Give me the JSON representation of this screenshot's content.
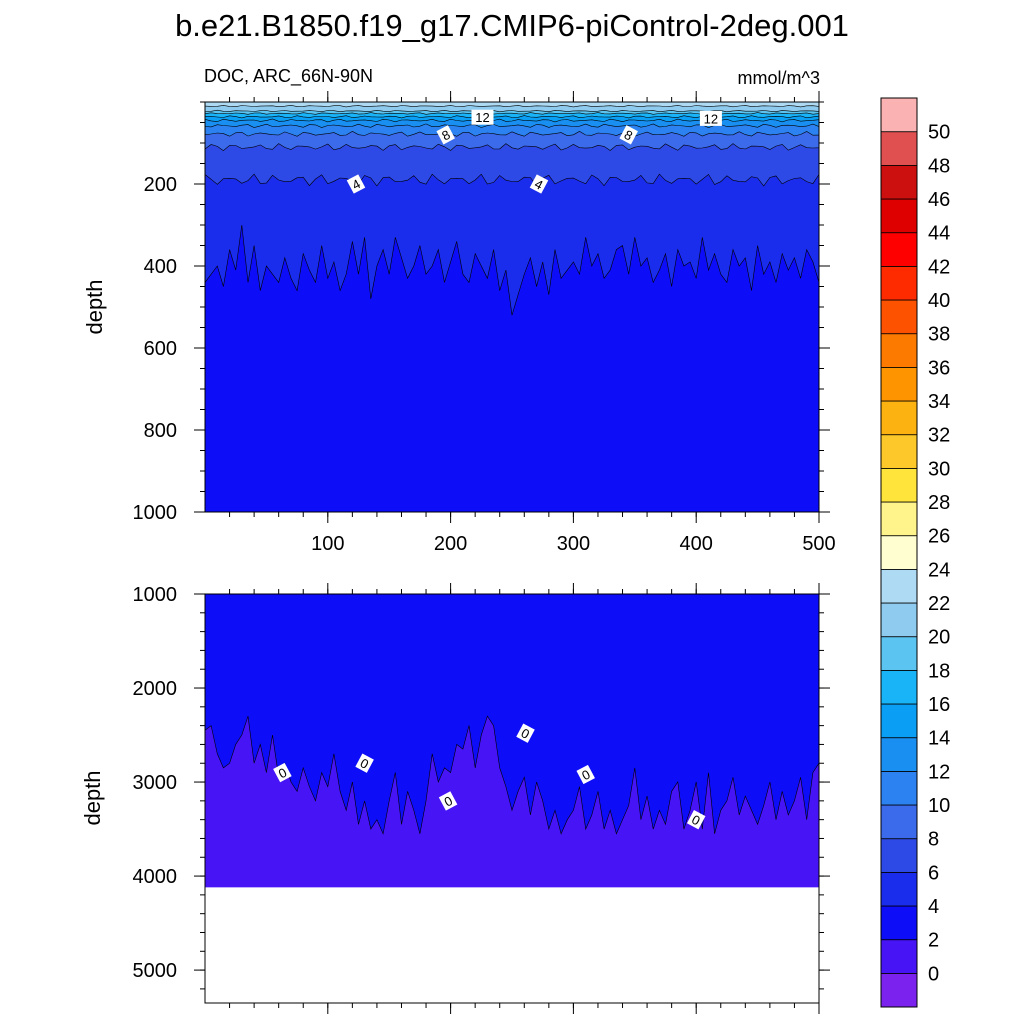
{
  "figure": {
    "title": "b.e21.B1850.f19_g17.CMIP6-piControl-2deg.001",
    "subtitle_left": "DOC, ARC_66N-90N",
    "subtitle_right": "mmol/m^3"
  },
  "colorbar": {
    "levels": [
      0,
      2,
      4,
      6,
      8,
      10,
      12,
      14,
      16,
      18,
      20,
      22,
      24,
      26,
      28,
      30,
      32,
      34,
      36,
      38,
      40,
      42,
      44,
      46,
      48,
      50
    ],
    "labels": [
      "0",
      "2",
      "4",
      "6",
      "8",
      "10",
      "12",
      "14",
      "16",
      "18",
      "20",
      "22",
      "24",
      "26",
      "28",
      "30",
      "32",
      "34",
      "36",
      "38",
      "40",
      "42",
      "44",
      "46",
      "48",
      "50"
    ],
    "colors": [
      "#7c22ee",
      "#4715f5",
      "#0d0df7",
      "#1a2cec",
      "#2e4ae6",
      "#3b6aea",
      "#2b82f0",
      "#1a8ff2",
      "#0a9ff5",
      "#19b3f8",
      "#5cc4f0",
      "#8ecbee",
      "#aedaf3",
      "#fefed0",
      "#fff48c",
      "#fee43b",
      "#fdc829",
      "#fcb312",
      "#fd9400",
      "#fd7a00",
      "#fd5200",
      "#fe2a00",
      "#fe0000",
      "#de0000",
      "#cc1010",
      "#e05050",
      "#fbb2b2"
    ]
  },
  "chart_data": [
    {
      "type": "heatmap",
      "subtype": "filled-contour",
      "panel": "upper",
      "ylabel": "depth",
      "xlabel": "",
      "xlim": [
        0,
        500
      ],
      "ylim": [
        1000,
        0
      ],
      "x_ticks": [
        100,
        200,
        300,
        400,
        500
      ],
      "x_tick_labels": [
        "100",
        "200",
        "300",
        "400",
        "500"
      ],
      "y_ticks": [
        200,
        400,
        600,
        800,
        1000
      ],
      "y_tick_labels": [
        "200",
        "400",
        "600",
        "800",
        "1000"
      ],
      "surface_bands": [
        {
          "level": 22,
          "bottom_depth": 10
        },
        {
          "level": 20,
          "bottom_depth": 22
        },
        {
          "level": 18,
          "bottom_depth": 28
        },
        {
          "level": 16,
          "bottom_depth": 36
        },
        {
          "level": 14,
          "bottom_depth": 45
        },
        {
          "level": 12,
          "bottom_depth": 58
        },
        {
          "level": 10,
          "bottom_depth": 78
        },
        {
          "level": 8,
          "bottom_depth": 110
        },
        {
          "level": 6,
          "bottom_depth": 190
        },
        {
          "level": 4,
          "bottom_depth": 1000
        }
      ],
      "contour_2_depth": {
        "x": [
          0,
          10,
          15,
          20,
          25,
          30,
          35,
          40,
          45,
          50,
          55,
          60,
          65,
          70,
          75,
          80,
          85,
          90,
          95,
          100,
          105,
          110,
          115,
          120,
          125,
          130,
          135,
          140,
          145,
          150,
          155,
          160,
          165,
          170,
          175,
          180,
          185,
          190,
          195,
          200,
          205,
          210,
          215,
          220,
          225,
          230,
          235,
          240,
          245,
          250,
          255,
          260,
          265,
          270,
          275,
          280,
          285,
          290,
          295,
          300,
          305,
          310,
          315,
          320,
          325,
          330,
          335,
          340,
          345,
          350,
          355,
          360,
          365,
          370,
          375,
          380,
          385,
          390,
          395,
          400,
          405,
          410,
          415,
          420,
          425,
          430,
          435,
          440,
          445,
          450,
          455,
          460,
          465,
          470,
          475,
          480,
          485,
          490,
          495,
          500
        ],
        "y": [
          440,
          400,
          450,
          360,
          410,
          300,
          440,
          350,
          460,
          400,
          420,
          440,
          380,
          430,
          460,
          370,
          410,
          440,
          350,
          430,
          390,
          460,
          420,
          340,
          420,
          330,
          480,
          400,
          360,
          420,
          330,
          380,
          430,
          400,
          350,
          420,
          400,
          360,
          440,
          390,
          340,
          420,
          440,
          370,
          400,
          430,
          360,
          460,
          410,
          520,
          470,
          420,
          380,
          450,
          390,
          470,
          360,
          430,
          410,
          390,
          420,
          330,
          400,
          370,
          430,
          410,
          360,
          350,
          420,
          330,
          400,
          380,
          440,
          410,
          370,
          450,
          360,
          400,
          390,
          430,
          330,
          410,
          370,
          420,
          440,
          360,
          400,
          380,
          460,
          350,
          420,
          390,
          440,
          370,
          410,
          380,
          430,
          360,
          390,
          440
        ]
      },
      "contour_labels": [
        {
          "text": "12",
          "x": 226,
          "y": 37
        },
        {
          "text": "12",
          "x": 412,
          "y": 40
        },
        {
          "text": "8",
          "x": 196,
          "y": 80
        },
        {
          "text": "8",
          "x": 345,
          "y": 80
        },
        {
          "text": "4",
          "x": 123,
          "y": 200
        },
        {
          "text": "4",
          "x": 272,
          "y": 200
        }
      ]
    },
    {
      "type": "heatmap",
      "subtype": "filled-contour",
      "panel": "lower",
      "ylabel": "depth",
      "xlabel": "",
      "xlim": [
        0,
        500
      ],
      "ylim": [
        5350,
        1000
      ],
      "x_ticks": [
        100,
        200,
        300,
        400,
        500
      ],
      "y_ticks": [
        1000,
        2000,
        3000,
        4000,
        5000
      ],
      "y_tick_labels": [
        "1000",
        "2000",
        "3000",
        "4000",
        "5000"
      ],
      "ocean_floor_depth": 4120,
      "upper_level": 2,
      "lower_level": 0,
      "contour_0_depth": {
        "x": [
          0,
          5,
          10,
          15,
          20,
          25,
          30,
          35,
          40,
          45,
          50,
          55,
          60,
          65,
          70,
          75,
          80,
          85,
          90,
          95,
          100,
          105,
          110,
          115,
          120,
          125,
          130,
          135,
          140,
          145,
          150,
          155,
          160,
          165,
          170,
          175,
          180,
          185,
          190,
          195,
          200,
          205,
          210,
          215,
          220,
          225,
          230,
          235,
          240,
          245,
          250,
          255,
          260,
          265,
          270,
          275,
          280,
          285,
          290,
          295,
          300,
          305,
          310,
          315,
          320,
          325,
          330,
          335,
          340,
          345,
          350,
          355,
          360,
          365,
          370,
          375,
          380,
          385,
          390,
          395,
          400,
          405,
          410,
          415,
          420,
          425,
          430,
          435,
          440,
          445,
          450,
          455,
          460,
          465,
          470,
          475,
          480,
          485,
          490,
          495,
          500
        ],
        "y": [
          2450,
          2400,
          2700,
          2850,
          2800,
          2600,
          2500,
          2300,
          2800,
          2600,
          2900,
          2500,
          2950,
          2800,
          3000,
          3100,
          2850,
          3050,
          3200,
          2900,
          3050,
          2700,
          3100,
          3300,
          3000,
          3450,
          3200,
          3500,
          3400,
          3550,
          3200,
          2900,
          3450,
          3100,
          3300,
          3550,
          3200,
          2700,
          3000,
          2850,
          2900,
          2600,
          2650,
          2400,
          2850,
          2500,
          2300,
          2400,
          2850,
          3050,
          3300,
          3100,
          2950,
          3350,
          3000,
          3200,
          3500,
          3300,
          3550,
          3400,
          3300,
          3050,
          3500,
          3350,
          3100,
          3500,
          3300,
          3550,
          3400,
          3250,
          2850,
          3400,
          3150,
          3500,
          3300,
          3450,
          3100,
          3000,
          3500,
          3300,
          3000,
          3500,
          2900,
          3550,
          3300,
          3200,
          2950,
          3350,
          3150,
          3300,
          3450,
          3250,
          3000,
          3400,
          3100,
          3350,
          3200,
          2950,
          3400,
          2900,
          2800
        ]
      },
      "contour_labels": [
        {
          "text": "0",
          "x": 63,
          "y": 2900
        },
        {
          "text": "0",
          "x": 130,
          "y": 2800
        },
        {
          "text": "0",
          "x": 198,
          "y": 3200
        },
        {
          "text": "0",
          "x": 261,
          "y": 2480
        },
        {
          "text": "0",
          "x": 310,
          "y": 2920
        },
        {
          "text": "0",
          "x": 400,
          "y": 3400
        }
      ]
    }
  ]
}
